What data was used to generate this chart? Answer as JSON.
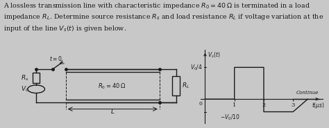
{
  "bg_color": "#c8c8c8",
  "text_color": "#1a1a1a",
  "line_color": "#1a1a1a",
  "fig_width": 4.74,
  "fig_height": 1.85,
  "text_fontsize": 6.8,
  "circuit_lw": 1.0,
  "graph_lw": 1.0,
  "plot_t": [
    0,
    1,
    1,
    2,
    2,
    3,
    3.5
  ],
  "plot_v": [
    0,
    0,
    1,
    1,
    -0.4,
    -0.4,
    0
  ],
  "ytick_v04": 1.0,
  "ytick_vm10": -0.4,
  "xlim": [
    -0.15,
    4.0
  ],
  "ylim": [
    -0.75,
    1.55
  ],
  "xticks": [
    1,
    2,
    3
  ]
}
